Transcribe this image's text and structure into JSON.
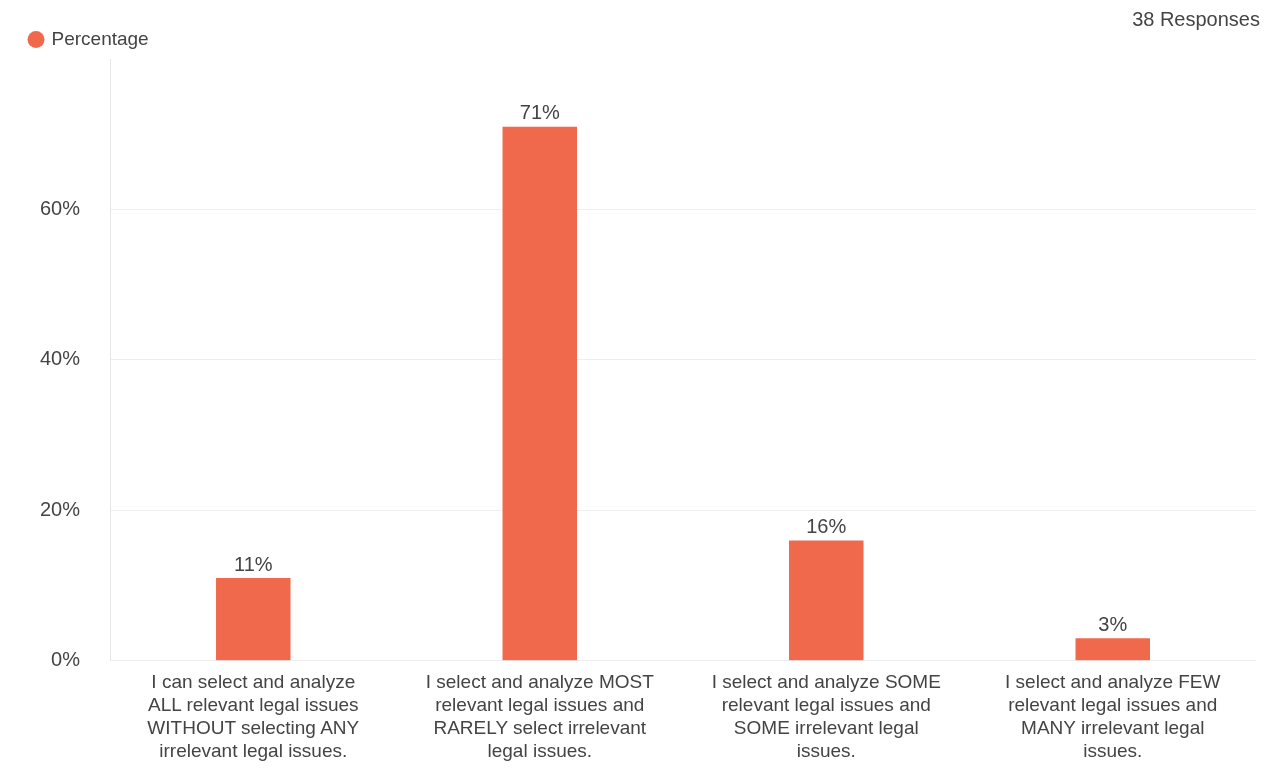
{
  "chart_data": {
    "type": "bar",
    "annotations": [
      "38 Responses"
    ],
    "categories": [
      "I can select and analyze ALL relevant legal issues WITHOUT selecting ANY irrelevant legal issues.",
      "I select and analyze MOST relevant legal issues and RARELY select irrelevant legal issues.",
      "I select and analyze SOME relevant legal issues and SOME irrelevant legal issues.",
      "I select and analyze FEW relevant legal issues and MANY irrelevant legal issues."
    ],
    "series": [
      {
        "name": "Percentage",
        "color": "#f0694c",
        "values": [
          11,
          71,
          16,
          3
        ],
        "value_labels": [
          "11%",
          "71%",
          "16%",
          "3%"
        ]
      }
    ],
    "ylim": [
      0,
      80
    ],
    "yticks": [
      {
        "value": 0,
        "label": "0%"
      },
      {
        "value": 20,
        "label": "20%"
      },
      {
        "value": 40,
        "label": "40%"
      },
      {
        "value": 60,
        "label": "60%"
      }
    ],
    "grid": "y",
    "legend": "top left"
  }
}
